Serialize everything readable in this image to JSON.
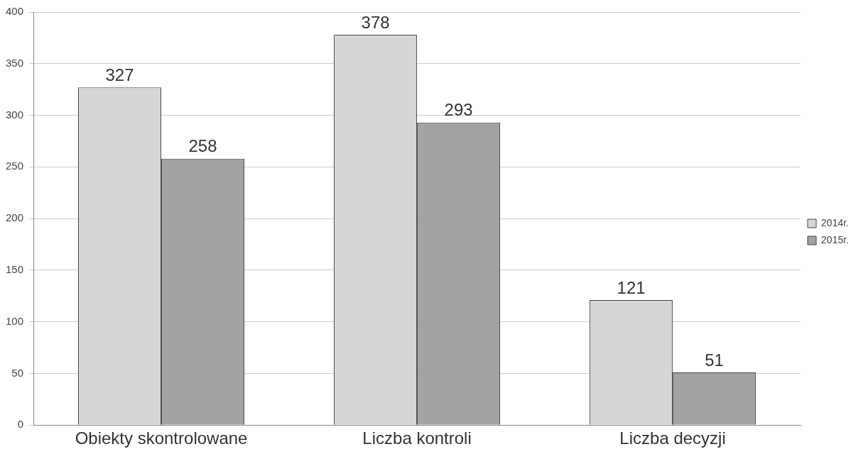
{
  "chart_data": {
    "type": "bar",
    "categories": [
      "Obiekty skontrolowane",
      "Liczba kontroli",
      "Liczba decyzji"
    ],
    "series": [
      {
        "name": "2014r.",
        "color": "#d6d6d6",
        "values": [
          327,
          378,
          121
        ]
      },
      {
        "name": "2015r.",
        "color": "#a3a3a3",
        "values": [
          258,
          293,
          51
        ]
      }
    ],
    "ylim": [
      0,
      400
    ],
    "yticks": [
      0,
      50,
      100,
      150,
      200,
      250,
      300,
      350,
      400
    ],
    "grid": "y",
    "legend": "right",
    "data_labels": true
  }
}
